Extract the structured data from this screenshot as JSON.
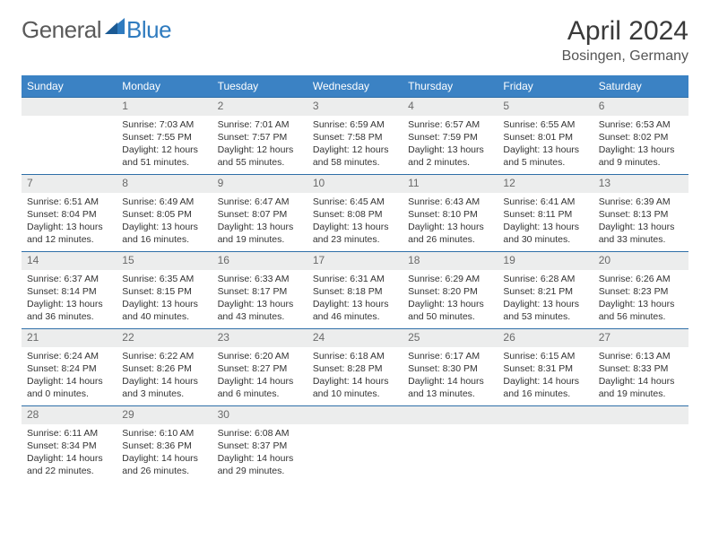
{
  "logo": {
    "general": "General",
    "blue": "Blue"
  },
  "header": {
    "month": "April 2024",
    "location": "Bosingen, Germany"
  },
  "colors": {
    "header_bar": "#3b82c4",
    "header_text": "#ffffff",
    "daynum_bg": "#eceded",
    "daynum_text": "#6a6a6a",
    "rule": "#2f6fa8",
    "logo_gray": "#5a5a5a",
    "logo_blue": "#2f7bbf"
  },
  "daysOfWeek": [
    "Sunday",
    "Monday",
    "Tuesday",
    "Wednesday",
    "Thursday",
    "Friday",
    "Saturday"
  ],
  "weeks": [
    [
      {
        "n": "",
        "sr": "",
        "ss": "",
        "dl": ""
      },
      {
        "n": "1",
        "sr": "Sunrise: 7:03 AM",
        "ss": "Sunset: 7:55 PM",
        "dl": "Daylight: 12 hours and 51 minutes."
      },
      {
        "n": "2",
        "sr": "Sunrise: 7:01 AM",
        "ss": "Sunset: 7:57 PM",
        "dl": "Daylight: 12 hours and 55 minutes."
      },
      {
        "n": "3",
        "sr": "Sunrise: 6:59 AM",
        "ss": "Sunset: 7:58 PM",
        "dl": "Daylight: 12 hours and 58 minutes."
      },
      {
        "n": "4",
        "sr": "Sunrise: 6:57 AM",
        "ss": "Sunset: 7:59 PM",
        "dl": "Daylight: 13 hours and 2 minutes."
      },
      {
        "n": "5",
        "sr": "Sunrise: 6:55 AM",
        "ss": "Sunset: 8:01 PM",
        "dl": "Daylight: 13 hours and 5 minutes."
      },
      {
        "n": "6",
        "sr": "Sunrise: 6:53 AM",
        "ss": "Sunset: 8:02 PM",
        "dl": "Daylight: 13 hours and 9 minutes."
      }
    ],
    [
      {
        "n": "7",
        "sr": "Sunrise: 6:51 AM",
        "ss": "Sunset: 8:04 PM",
        "dl": "Daylight: 13 hours and 12 minutes."
      },
      {
        "n": "8",
        "sr": "Sunrise: 6:49 AM",
        "ss": "Sunset: 8:05 PM",
        "dl": "Daylight: 13 hours and 16 minutes."
      },
      {
        "n": "9",
        "sr": "Sunrise: 6:47 AM",
        "ss": "Sunset: 8:07 PM",
        "dl": "Daylight: 13 hours and 19 minutes."
      },
      {
        "n": "10",
        "sr": "Sunrise: 6:45 AM",
        "ss": "Sunset: 8:08 PM",
        "dl": "Daylight: 13 hours and 23 minutes."
      },
      {
        "n": "11",
        "sr": "Sunrise: 6:43 AM",
        "ss": "Sunset: 8:10 PM",
        "dl": "Daylight: 13 hours and 26 minutes."
      },
      {
        "n": "12",
        "sr": "Sunrise: 6:41 AM",
        "ss": "Sunset: 8:11 PM",
        "dl": "Daylight: 13 hours and 30 minutes."
      },
      {
        "n": "13",
        "sr": "Sunrise: 6:39 AM",
        "ss": "Sunset: 8:13 PM",
        "dl": "Daylight: 13 hours and 33 minutes."
      }
    ],
    [
      {
        "n": "14",
        "sr": "Sunrise: 6:37 AM",
        "ss": "Sunset: 8:14 PM",
        "dl": "Daylight: 13 hours and 36 minutes."
      },
      {
        "n": "15",
        "sr": "Sunrise: 6:35 AM",
        "ss": "Sunset: 8:15 PM",
        "dl": "Daylight: 13 hours and 40 minutes."
      },
      {
        "n": "16",
        "sr": "Sunrise: 6:33 AM",
        "ss": "Sunset: 8:17 PM",
        "dl": "Daylight: 13 hours and 43 minutes."
      },
      {
        "n": "17",
        "sr": "Sunrise: 6:31 AM",
        "ss": "Sunset: 8:18 PM",
        "dl": "Daylight: 13 hours and 46 minutes."
      },
      {
        "n": "18",
        "sr": "Sunrise: 6:29 AM",
        "ss": "Sunset: 8:20 PM",
        "dl": "Daylight: 13 hours and 50 minutes."
      },
      {
        "n": "19",
        "sr": "Sunrise: 6:28 AM",
        "ss": "Sunset: 8:21 PM",
        "dl": "Daylight: 13 hours and 53 minutes."
      },
      {
        "n": "20",
        "sr": "Sunrise: 6:26 AM",
        "ss": "Sunset: 8:23 PM",
        "dl": "Daylight: 13 hours and 56 minutes."
      }
    ],
    [
      {
        "n": "21",
        "sr": "Sunrise: 6:24 AM",
        "ss": "Sunset: 8:24 PM",
        "dl": "Daylight: 14 hours and 0 minutes."
      },
      {
        "n": "22",
        "sr": "Sunrise: 6:22 AM",
        "ss": "Sunset: 8:26 PM",
        "dl": "Daylight: 14 hours and 3 minutes."
      },
      {
        "n": "23",
        "sr": "Sunrise: 6:20 AM",
        "ss": "Sunset: 8:27 PM",
        "dl": "Daylight: 14 hours and 6 minutes."
      },
      {
        "n": "24",
        "sr": "Sunrise: 6:18 AM",
        "ss": "Sunset: 8:28 PM",
        "dl": "Daylight: 14 hours and 10 minutes."
      },
      {
        "n": "25",
        "sr": "Sunrise: 6:17 AM",
        "ss": "Sunset: 8:30 PM",
        "dl": "Daylight: 14 hours and 13 minutes."
      },
      {
        "n": "26",
        "sr": "Sunrise: 6:15 AM",
        "ss": "Sunset: 8:31 PM",
        "dl": "Daylight: 14 hours and 16 minutes."
      },
      {
        "n": "27",
        "sr": "Sunrise: 6:13 AM",
        "ss": "Sunset: 8:33 PM",
        "dl": "Daylight: 14 hours and 19 minutes."
      }
    ],
    [
      {
        "n": "28",
        "sr": "Sunrise: 6:11 AM",
        "ss": "Sunset: 8:34 PM",
        "dl": "Daylight: 14 hours and 22 minutes."
      },
      {
        "n": "29",
        "sr": "Sunrise: 6:10 AM",
        "ss": "Sunset: 8:36 PM",
        "dl": "Daylight: 14 hours and 26 minutes."
      },
      {
        "n": "30",
        "sr": "Sunrise: 6:08 AM",
        "ss": "Sunset: 8:37 PM",
        "dl": "Daylight: 14 hours and 29 minutes."
      },
      {
        "n": "",
        "sr": "",
        "ss": "",
        "dl": ""
      },
      {
        "n": "",
        "sr": "",
        "ss": "",
        "dl": ""
      },
      {
        "n": "",
        "sr": "",
        "ss": "",
        "dl": ""
      },
      {
        "n": "",
        "sr": "",
        "ss": "",
        "dl": ""
      }
    ]
  ]
}
